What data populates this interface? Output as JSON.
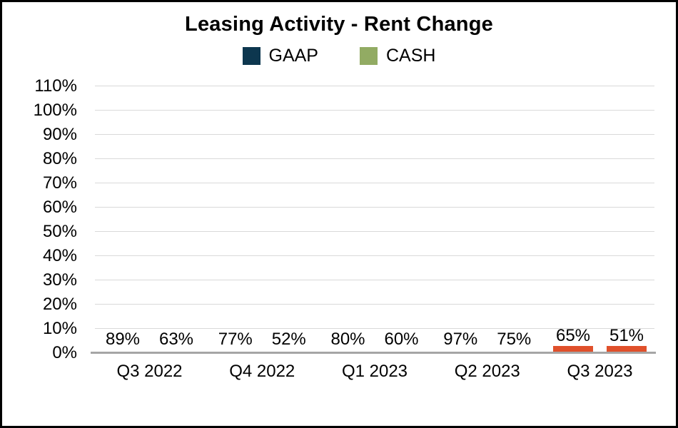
{
  "chart_data": {
    "type": "bar",
    "title": "Leasing Activity - Rent Change",
    "categories": [
      "Q3 2022",
      "Q4 2022",
      "Q1 2023",
      "Q2 2023",
      "Q3 2023"
    ],
    "series": [
      {
        "name": "GAAP",
        "color": "#0d374f",
        "values": [
          89,
          77,
          80,
          97,
          65
        ],
        "labels": [
          "89%",
          "77%",
          "80%",
          "97%",
          "65%"
        ]
      },
      {
        "name": "CASH",
        "color": "#92ab63",
        "values": [
          63,
          52,
          60,
          75,
          51
        ],
        "labels": [
          "63%",
          "52%",
          "60%",
          "75%",
          "51%"
        ]
      }
    ],
    "ylim": [
      0,
      110
    ],
    "yticks": [
      {
        "value": 0,
        "label": "0%"
      },
      {
        "value": 10,
        "label": "10%"
      },
      {
        "value": 20,
        "label": "20%"
      },
      {
        "value": 30,
        "label": "30%"
      },
      {
        "value": 40,
        "label": "40%"
      },
      {
        "value": 50,
        "label": "50%"
      },
      {
        "value": 60,
        "label": "60%"
      },
      {
        "value": 70,
        "label": "70%"
      },
      {
        "value": 80,
        "label": "80%"
      },
      {
        "value": 90,
        "label": "90%"
      },
      {
        "value": 100,
        "label": "100%"
      },
      {
        "value": 110,
        "label": "110%"
      }
    ],
    "grid": "horizontal",
    "legend_position": "top-center",
    "highlight": {
      "category": "Q3 2023",
      "category_index": 4,
      "color": "#e0502b"
    },
    "colors": {
      "gridline": "#d9d9d9",
      "axis_line": "#a6a6a6",
      "frame_border": "#000000",
      "background": "#ffffff",
      "data_label_text": "#000000"
    }
  }
}
